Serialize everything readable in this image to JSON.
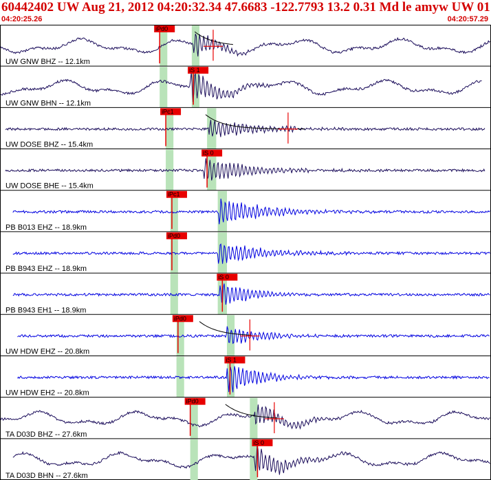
{
  "header": {
    "title": "60442402 UW Aug 21, 2012 04:20:32.34    47.6683 -122.7793 13.2 0.31 Md le amyw UW 01    3",
    "start_time": "04:20:25.26",
    "end_time": "04:20:57.29"
  },
  "colors": {
    "title": "#d40000",
    "pick_box": "#e80000",
    "pick_window": "#b9e3b9",
    "trace_dark": "#1a0c5a",
    "trace_blue": "#0000e0",
    "frame": "#000000"
  },
  "chart_data": {
    "type": "line",
    "title": "60442402 UW Aug 21, 2012 04:20:32.34    47.6683 -122.7793 13.2 0.31 Md le amyw UW 01    3",
    "x_axis": {
      "start": "04:20:25.26",
      "end": "04:20:57.29",
      "unit": "seconds",
      "duration": 32.03
    },
    "traces": [
      {
        "label": "UW GNW BHZ -- 12.1km",
        "network": "UW",
        "station": "GNW",
        "channel": "BHZ",
        "distance_km": 12.1,
        "color": "dark",
        "start_s": 0.0,
        "end_s": 32.03,
        "style": "long_period",
        "pick": {
          "label": "iPd0",
          "time_s": 10.4
        },
        "window_s": [
          10.4,
          10.9
        ],
        "window2_s": [
          12.5,
          13.0
        ],
        "burst_s": 12.8,
        "decay_s": 1.6,
        "amp": 0.7,
        "coda": {
          "t0": 12.7,
          "t1": 15.2,
          "amp_marker_s": 13.9
        }
      },
      {
        "label": "UW GNW BHN -- 12.1km",
        "network": "UW",
        "station": "GNW",
        "channel": "BHN",
        "distance_km": 12.1,
        "color": "dark",
        "start_s": 0.0,
        "end_s": 31.5,
        "style": "long_period",
        "pick": {
          "label": "iS 1",
          "time_s": 12.6
        },
        "window_s": [
          10.4,
          10.9
        ],
        "window2_s": [
          12.5,
          13.0
        ],
        "burst_s": 12.6,
        "decay_s": 1.8,
        "amp": 0.9,
        "coda": null
      },
      {
        "label": "UW DOSE BHZ -- 15.4km",
        "network": "UW",
        "station": "DOSE",
        "channel": "BHZ",
        "distance_km": 15.4,
        "color": "dark",
        "start_s": 0.3,
        "end_s": 31.7,
        "style": "noise",
        "pick": {
          "label": "iPc1",
          "time_s": 10.8
        },
        "window_s": [
          10.8,
          11.3
        ],
        "window2_s": [
          13.5,
          14.1
        ],
        "burst_s": 13.8,
        "decay_s": 3.2,
        "amp": 0.55,
        "coda": {
          "t0": 13.4,
          "t1": 20.0,
          "amp_marker_s": 18.8
        }
      },
      {
        "label": "UW DOSE BHE -- 15.4km",
        "network": "UW",
        "station": "DOSE",
        "channel": "BHE",
        "distance_km": 15.4,
        "color": "dark",
        "start_s": 0.3,
        "end_s": 31.7,
        "style": "noise",
        "pick": {
          "label": "iS 0",
          "time_s": 13.5
        },
        "window_s": [
          10.8,
          11.3
        ],
        "window2_s": [
          13.5,
          14.1
        ],
        "burst_s": 13.5,
        "decay_s": 3.0,
        "amp": 0.7,
        "coda": null
      },
      {
        "label": "PB B013 EHZ -- 18.9km",
        "network": "PB",
        "station": "B013",
        "channel": "EHZ",
        "distance_km": 18.9,
        "color": "blue",
        "start_s": 0.8,
        "end_s": 32.03,
        "style": "noise",
        "pick": {
          "label": "iPc1",
          "time_s": 11.2
        },
        "window_s": [
          11.1,
          11.6
        ],
        "window2_s": [
          14.2,
          14.8
        ],
        "burst_s": 14.4,
        "decay_s": 3.0,
        "amp": 0.8,
        "coda": null
      },
      {
        "label": "PB B943 EHZ -- 18.9km",
        "network": "PB",
        "station": "B943",
        "channel": "EHZ",
        "distance_km": 18.9,
        "color": "blue",
        "start_s": 0.8,
        "end_s": 32.03,
        "style": "noise",
        "pick": {
          "label": "iPd0",
          "time_s": 11.2
        },
        "window_s": [
          11.1,
          11.6
        ],
        "window2_s": [
          14.2,
          14.8
        ],
        "burst_s": 14.4,
        "decay_s": 2.6,
        "amp": 0.7,
        "coda": null
      },
      {
        "label": "PB B943 EH1 -- 18.9km",
        "network": "PB",
        "station": "B943",
        "channel": "EH1",
        "distance_km": 18.9,
        "color": "blue",
        "start_s": 0.8,
        "end_s": 32.03,
        "style": "noise",
        "pick": {
          "label": "iS 0",
          "time_s": 14.5
        },
        "window_s": [
          11.1,
          11.6
        ],
        "window2_s": [
          14.2,
          14.8
        ],
        "burst_s": 14.5,
        "decay_s": 1.8,
        "amp": 0.8,
        "coda": null
      },
      {
        "label": "UW HDW EHZ -- 20.8km",
        "network": "UW",
        "station": "HDW",
        "channel": "EHZ",
        "distance_km": 20.8,
        "color": "blue",
        "start_s": 1.1,
        "end_s": 32.03,
        "style": "noise",
        "pick": {
          "label": "iPd0",
          "time_s": 11.6
        },
        "window_s": [
          11.5,
          12.0
        ],
        "window2_s": [
          14.8,
          15.3
        ],
        "burst_s": 15.0,
        "decay_s": 2.2,
        "amp": 0.55,
        "coda": {
          "t0": 13.0,
          "t1": 16.4,
          "amp_marker_s": 16.3
        }
      },
      {
        "label": "UW HDW EH2 -- 20.8km",
        "network": "UW",
        "station": "HDW",
        "channel": "EH2",
        "distance_km": 20.8,
        "color": "blue",
        "start_s": 1.1,
        "end_s": 32.03,
        "style": "noise",
        "pick": {
          "label": "iS 1",
          "time_s": 15.0
        },
        "window_s": [
          11.5,
          12.0
        ],
        "window2_s": [
          14.8,
          15.3
        ],
        "burst_s": 15.0,
        "decay_s": 2.0,
        "amp": 0.9,
        "coda": null
      },
      {
        "label": "TA D03D BHZ -- 27.6km",
        "network": "TA",
        "station": "D03D",
        "channel": "BHZ",
        "distance_km": 27.6,
        "color": "dark",
        "start_s": 0.0,
        "end_s": 32.03,
        "style": "long_period",
        "pick": {
          "label": "iPd0",
          "time_s": 12.4
        },
        "window_s": [
          12.4,
          12.9
        ],
        "window2_s": [
          16.3,
          16.8
        ],
        "burst_s": 16.8,
        "decay_s": 2.0,
        "amp": 0.65,
        "coda": {
          "t0": 14.7,
          "t1": 18.2,
          "amp_marker_s": 17.9
        }
      },
      {
        "label": "TA D03D BHN -- 27.6km",
        "network": "TA",
        "station": "D03D",
        "channel": "BHN",
        "distance_km": 27.6,
        "color": "dark",
        "start_s": 0.8,
        "end_s": 32.03,
        "style": "long_period",
        "pick": {
          "label": "iS 0",
          "time_s": 16.8
        },
        "window_s": [
          12.4,
          12.9
        ],
        "window2_s": [
          16.3,
          16.8
        ],
        "burst_s": 16.8,
        "decay_s": 2.0,
        "amp": 0.8,
        "coda": null
      }
    ]
  }
}
